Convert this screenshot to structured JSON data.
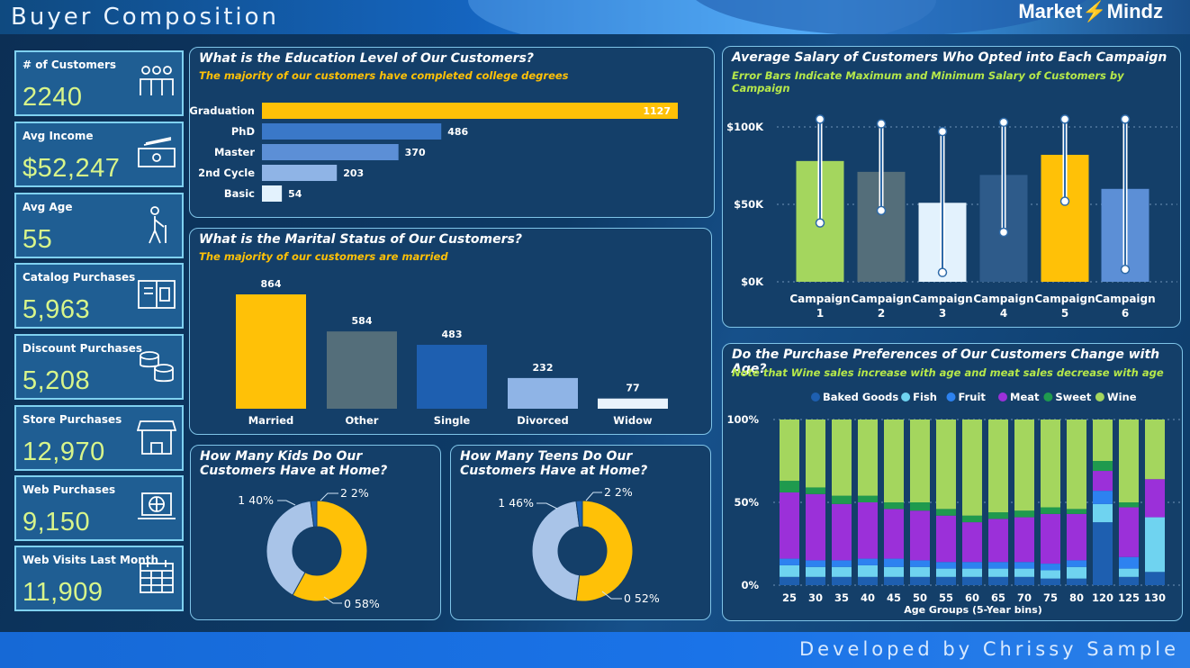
{
  "header": {
    "title": "Buyer Composition",
    "brand_left": "Market",
    "brand_right": "Mindz"
  },
  "footer": {
    "credit": "Developed by Chrissy Sample"
  },
  "kpis": [
    {
      "label": "# of Customers",
      "value": "2240",
      "icon": "people-icon"
    },
    {
      "label": "Avg Income",
      "value": "$52,247",
      "icon": "cash-icon"
    },
    {
      "label": "Avg Age",
      "value": "55",
      "icon": "elderly-person-icon"
    },
    {
      "label": "Catalog Purchases",
      "value": "5,963",
      "icon": "catalog-icon"
    },
    {
      "label": "Discount Purchases",
      "value": "5,208",
      "icon": "coins-icon"
    },
    {
      "label": "Store Purchases",
      "value": "12,970",
      "icon": "storefront-icon"
    },
    {
      "label": "Web Purchases",
      "value": "9,150",
      "icon": "laptop-globe-icon"
    },
    {
      "label": "Web Visits Last Month",
      "value": "11,909",
      "icon": "calendar-icon"
    }
  ],
  "colors": {
    "accent": "#ffc107",
    "green": "#a4d65e",
    "slate": "#546e7a",
    "pale": "#e3f2fd",
    "navy": "#2e5b8a",
    "blue": "#5c8fd6"
  },
  "chart_data": [
    {
      "id": "education",
      "type": "bar",
      "orientation": "horizontal",
      "title": "What is the Education Level of Our Customers?",
      "subtitle": "The majority of our customers have completed college degrees",
      "categories": [
        "Graduation",
        "PhD",
        "Master",
        "2nd Cycle",
        "Basic"
      ],
      "values": [
        1127,
        486,
        370,
        203,
        54
      ],
      "colors": [
        "#ffc107",
        "#3a78c8",
        "#5c8fd6",
        "#8fb4e6",
        "#e3f2fd"
      ]
    },
    {
      "id": "marital",
      "type": "bar",
      "title": "What is the Marital Status of Our Customers?",
      "subtitle": "The majority of our customers are married",
      "categories": [
        "Married",
        "Other",
        "Single",
        "Divorced",
        "Widow"
      ],
      "values": [
        864,
        584,
        483,
        232,
        77
      ],
      "colors": [
        "#ffc107",
        "#546e7a",
        "#1e5fb0",
        "#8fb4e6",
        "#e8f2fc"
      ]
    },
    {
      "id": "kids",
      "type": "pie",
      "title": "How Many Kids Do Our Customers Have at Home?",
      "categories": [
        "0",
        "1",
        "2"
      ],
      "values": [
        58,
        40,
        2
      ],
      "labels": [
        "0 58%",
        "1 40%",
        "2 2%"
      ],
      "colors": [
        "#ffc107",
        "#a9c4e8",
        "#1e5fb0"
      ]
    },
    {
      "id": "teens",
      "type": "pie",
      "title": "How Many Teens Do Our Customers Have at Home?",
      "categories": [
        "0",
        "1",
        "2"
      ],
      "values": [
        52,
        46,
        2
      ],
      "labels": [
        "0 52%",
        "1 46%",
        "2 2%"
      ],
      "colors": [
        "#ffc107",
        "#a9c4e8",
        "#1e5fb0"
      ]
    },
    {
      "id": "salary",
      "type": "bar",
      "title": "Average Salary of Customers Who Opted into Each Campaign",
      "subtitle": "Error Bars Indicate Maximum and Minimum Salary of Customers by Campaign",
      "categories": [
        "Campaign 1",
        "Campaign 2",
        "Campaign 3",
        "Campaign 4",
        "Campaign 5",
        "Campaign 6"
      ],
      "category_lines": [
        [
          "Campaign",
          "1"
        ],
        [
          "Campaign",
          "2"
        ],
        [
          "Campaign",
          "3"
        ],
        [
          "Campaign",
          "4"
        ],
        [
          "Campaign",
          "5"
        ],
        [
          "Campaign",
          "6"
        ]
      ],
      "values": [
        78000,
        71000,
        51000,
        69000,
        82000,
        60000
      ],
      "max": [
        105000,
        102000,
        97000,
        103000,
        105000,
        105000
      ],
      "min": [
        38000,
        46000,
        6000,
        32000,
        52000,
        8000
      ],
      "colors": [
        "#a4d65e",
        "#546e7a",
        "#e3f2fd",
        "#2e5b8a",
        "#ffc107",
        "#5c8fd6"
      ],
      "ylim": [
        0,
        105000
      ],
      "yticks": [
        0,
        50000,
        100000
      ],
      "ytick_labels": [
        "$0K",
        "$50K",
        "$100K"
      ]
    },
    {
      "id": "age-preferences",
      "type": "bar",
      "stacked": true,
      "percent": true,
      "title": "Do the Purchase Preferences of Our Customers Change with Age?",
      "subtitle": "Note that Wine sales increase with age and meat sales decrease with age",
      "xlabel": "Age Groups (5-Year bins)",
      "categories": [
        "25",
        "30",
        "35",
        "40",
        "45",
        "50",
        "55",
        "60",
        "65",
        "70",
        "75",
        "80",
        "120",
        "125",
        "130"
      ],
      "yticks": [
        0,
        50,
        100
      ],
      "ytick_labels": [
        "0%",
        "50%",
        "100%"
      ],
      "series": [
        {
          "name": "Baked Goods",
          "color": "#1e5fb0",
          "values": [
            5,
            5,
            5,
            5,
            5,
            5,
            5,
            5,
            5,
            5,
            4,
            4,
            38,
            5,
            8
          ]
        },
        {
          "name": "Fish",
          "color": "#6fd3f0",
          "values": [
            7,
            6,
            6,
            7,
            6,
            6,
            5,
            5,
            5,
            5,
            5,
            7,
            11,
            5,
            33
          ]
        },
        {
          "name": "Fruit",
          "color": "#2d82f0",
          "values": [
            4,
            4,
            4,
            4,
            5,
            4,
            4,
            4,
            4,
            4,
            4,
            4,
            8,
            7,
            0
          ]
        },
        {
          "name": "Meat",
          "color": "#9b30d9",
          "values": [
            40,
            40,
            34,
            34,
            30,
            30,
            28,
            24,
            26,
            27,
            30,
            28,
            12,
            30,
            23
          ]
        },
        {
          "name": "Sweet",
          "color": "#1f9a4e",
          "values": [
            7,
            4,
            5,
            4,
            4,
            5,
            4,
            4,
            4,
            4,
            4,
            3,
            6,
            3,
            0
          ]
        },
        {
          "name": "Wine",
          "color": "#a4d65e",
          "values": [
            37,
            41,
            46,
            46,
            50,
            50,
            54,
            58,
            56,
            55,
            53,
            54,
            25,
            50,
            36
          ]
        }
      ]
    }
  ]
}
